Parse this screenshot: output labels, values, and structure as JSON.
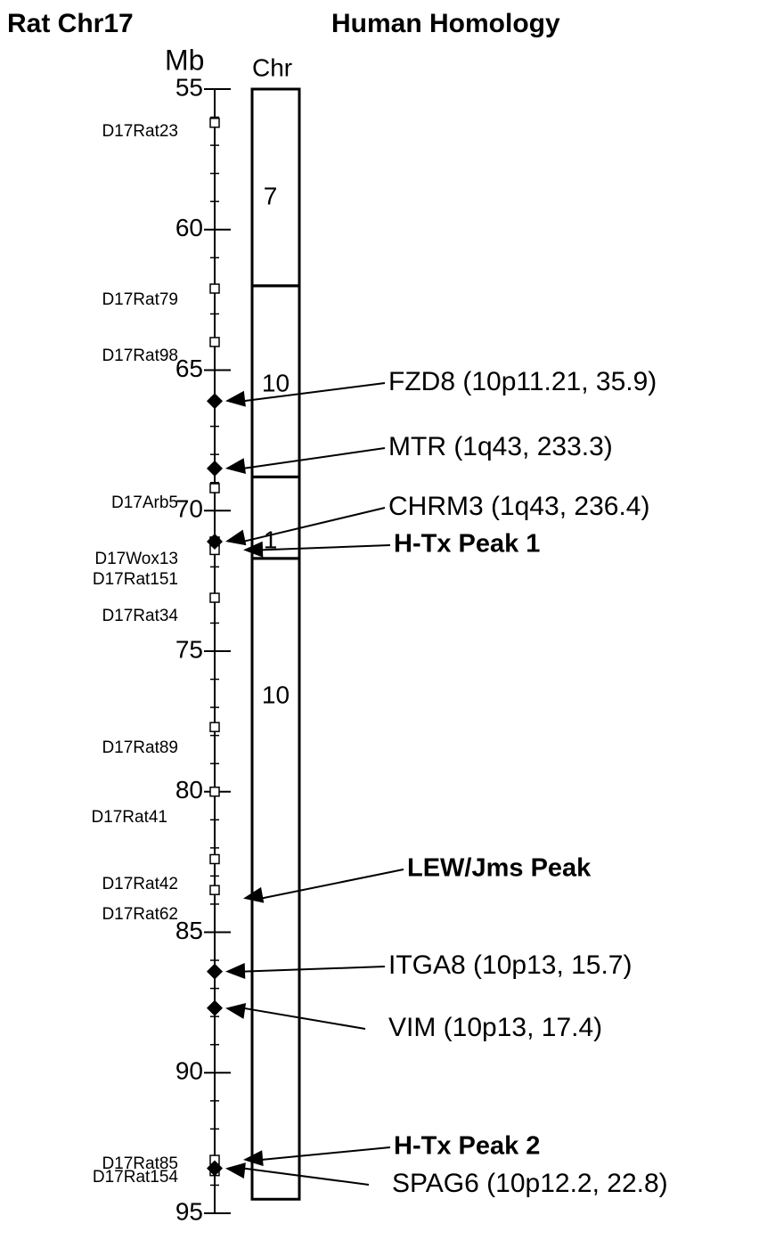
{
  "header": {
    "left_title": "Rat Chr17",
    "right_title": "Human Homology"
  },
  "axis": {
    "label": "Mb",
    "lim": [
      55,
      95
    ],
    "ticks": [
      55,
      60,
      65,
      70,
      75,
      80,
      85,
      90,
      95
    ],
    "minor_step": 1
  },
  "chromosome": {
    "label": "Chr",
    "segments": [
      {
        "label": "7",
        "start": 55,
        "end": 62.0
      },
      {
        "label": "10",
        "start": 62.0,
        "end": 68.8
      },
      {
        "label": "1",
        "start": 68.8,
        "end": 71.7
      },
      {
        "label": "10",
        "start": 71.7,
        "end": 94.5
      }
    ]
  },
  "markers": [
    {
      "name": "D17Rat23",
      "position": 56.2
    },
    {
      "name": "D17Rat79",
      "position": 62.1
    },
    {
      "name": "D17Rat98",
      "position": 64.0
    },
    {
      "name": "D17Arb5",
      "position": 69.2
    },
    {
      "name": "D17Wox13",
      "position": 71.1
    },
    {
      "name": "D17Rat151",
      "position": 71.4
    },
    {
      "name": "D17Rat34",
      "position": 73.1
    },
    {
      "name": "D17Rat89",
      "position": 77.7
    },
    {
      "name": "D17Rat41",
      "position": 80.0
    },
    {
      "name": "D17Rat42",
      "position": 82.4
    },
    {
      "name": "D17Rat62",
      "position": 83.5
    },
    {
      "name": "D17Rat85",
      "position": 93.1
    },
    {
      "name": "D17Rat154",
      "position": 93.5
    }
  ],
  "annotations": [
    {
      "label": "FZD8  (10p11.21, 35.9)",
      "position": 66.1,
      "kind": "gene"
    },
    {
      "label": "MTR  (1q43, 233.3)",
      "position": 68.5,
      "kind": "gene"
    },
    {
      "label": "CHRM3  (1q43, 236.4)",
      "position": 71.1,
      "kind": "gene"
    },
    {
      "label": "H-Tx Peak 1",
      "position": 71.4,
      "kind": "peak"
    },
    {
      "label": "LEW/Jms Peak",
      "position": 83.8,
      "kind": "peak"
    },
    {
      "label": "ITGA8 (10p13, 15.7)",
      "position": 86.4,
      "kind": "gene"
    },
    {
      "label": "VIM (10p13, 17.4)",
      "position": 87.7,
      "kind": "gene"
    },
    {
      "label": "H-Tx Peak 2",
      "position": 93.1,
      "kind": "peak"
    },
    {
      "label": "SPAG6  (10p12.2, 22.8)",
      "position": 93.4,
      "kind": "gene"
    }
  ]
}
